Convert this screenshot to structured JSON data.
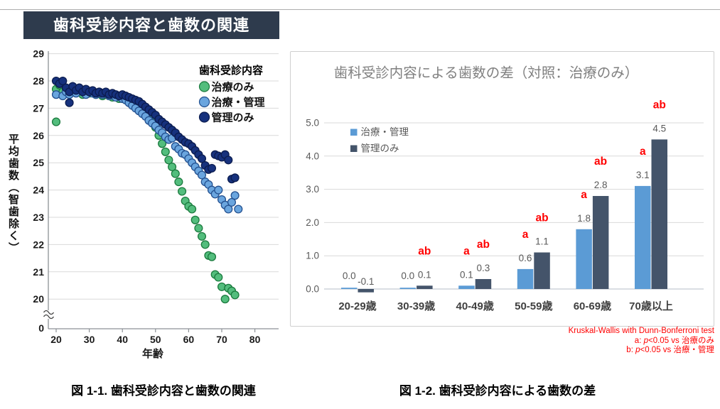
{
  "colors": {
    "banner_bg": "#2E3B4D",
    "banner_text": "#FFFFFF",
    "topline": "#ADADAD",
    "panel_border": "#CFCFCF",
    "grid": "#D9D9D9",
    "axis": "#8C9196",
    "bar_baseline": "#C3C9D2",
    "tick_label": "#595959",
    "scatter_tick_label": "#1A1A1A",
    "category_label": "#404040",
    "chart_title": "#7F7F7F",
    "legend_text": "#111111",
    "sig_red": "#FF0000"
  },
  "chart_data": [
    {
      "id": "fig-1-1",
      "type": "scatter",
      "title": "歯科受診内容と歯数の関連",
      "caption": "図 1-1. 歯科受診内容と歯数の関連",
      "xlabel": "年齢",
      "ylabel": "平均歯数（智歯除く）",
      "legend_title": "歯科受診内容",
      "legend_position": "top-right",
      "grid": true,
      "x_ticks": [
        20,
        30,
        40,
        50,
        60,
        70,
        80
      ],
      "y_ticks": [
        20,
        21,
        22,
        23,
        24,
        25,
        26,
        27,
        28,
        29
      ],
      "y_axis_break": true,
      "y_axis_origin_label": "0",
      "xlim": [
        17,
        87
      ],
      "ylim_main": [
        20,
        29
      ],
      "series": [
        {
          "name": "治療のみ",
          "color": "#53BD7D",
          "edge": "#1B7A3E",
          "start_age": 20,
          "values": [
            27.7,
            27.85,
            27.6,
            27.7,
            27.55,
            27.75,
            27.6,
            27.65,
            27.5,
            27.6,
            27.55,
            27.6,
            27.5,
            27.55,
            27.45,
            27.5,
            27.45,
            27.4,
            27.45,
            27.35,
            27.35,
            27.3,
            27.25,
            27.15,
            27.05,
            27.0,
            26.9,
            26.8,
            26.65,
            26.5,
            26.3,
            26.0,
            25.7,
            25.4,
            25.1,
            24.85,
            24.6,
            24.3,
            23.95,
            23.6,
            23.4,
            23.3,
            22.9,
            22.6,
            22.3,
            22.0,
            21.6,
            21.55,
            20.9,
            20.8,
            20.45,
            20.0,
            20.4,
            20.3,
            20.15
          ],
          "extra_points": [
            [
              20,
              26.5
            ]
          ]
        },
        {
          "name": "治療・管理",
          "color": "#6AA5DE",
          "edge": "#23508F",
          "start_age": 20,
          "values": [
            27.5,
            27.9,
            27.45,
            27.6,
            27.5,
            27.8,
            27.55,
            27.7,
            27.6,
            27.5,
            27.6,
            27.55,
            27.5,
            27.6,
            27.5,
            27.55,
            27.45,
            27.5,
            27.4,
            27.45,
            27.35,
            27.3,
            27.2,
            27.1,
            27.0,
            26.9,
            26.8,
            26.7,
            26.55,
            26.45,
            26.35,
            26.2,
            26.1,
            25.95,
            25.85,
            25.9,
            25.6,
            25.5,
            25.35,
            25.3,
            25.15,
            25.0,
            24.85,
            24.7,
            24.55,
            24.3,
            24.2,
            24.0,
            23.85,
            24.0,
            23.65,
            23.45,
            23.3,
            23.55,
            23.8,
            23.3
          ],
          "extra_points": []
        },
        {
          "name": "管理のみ",
          "color": "#16317D",
          "edge": "#0B1C4F",
          "start_age": 20,
          "values": [
            28.0,
            27.9,
            28.0,
            27.75,
            27.6,
            27.8,
            27.65,
            27.75,
            27.6,
            27.7,
            27.6,
            27.65,
            27.55,
            27.6,
            27.55,
            27.6,
            27.5,
            27.55,
            27.5,
            27.45,
            27.5,
            27.45,
            27.4,
            27.35,
            27.3,
            27.25,
            27.15,
            27.05,
            26.95,
            26.85,
            26.75,
            26.6,
            26.5,
            26.4,
            26.3,
            26.2,
            26.1,
            25.95,
            25.85,
            25.75,
            25.7,
            25.6,
            25.45,
            25.3,
            25.15,
            24.9,
            24.75,
            24.8,
            25.3,
            25.25,
            25.2,
            25.3,
            25.1,
            24.4,
            24.45
          ],
          "extra_points": [
            [
              24,
              27.2
            ]
          ]
        }
      ]
    },
    {
      "id": "fig-1-2",
      "type": "bar",
      "title": "歯科受診内容による歯数の差（対照：治療のみ）",
      "caption": "図 1-2. 歯科受診内容による歯数の差",
      "categories": [
        "20-29歳",
        "30-39歳",
        "40-49歳",
        "50-59歳",
        "60-69歳",
        "70歳以上"
      ],
      "series": [
        {
          "name": "治療・管理",
          "color": "#5B9BD5",
          "values": [
            0.0,
            0.0,
            0.1,
            0.6,
            1.8,
            3.1
          ],
          "sig": [
            "",
            "",
            "a",
            "a",
            "a",
            "a"
          ]
        },
        {
          "name": "管理のみ",
          "color": "#44546A",
          "values": [
            -0.1,
            0.1,
            0.3,
            1.1,
            2.8,
            4.5
          ],
          "sig": [
            "",
            "ab",
            "ab",
            "ab",
            "ab",
            "ab"
          ]
        }
      ],
      "ylim": [
        0.0,
        5.0
      ],
      "y_ticks": [
        0.0,
        1.0,
        2.0,
        3.0,
        4.0,
        5.0
      ],
      "grid": true,
      "legend_position": "top-left",
      "sig_color": "#FF0000"
    }
  ],
  "footnote": {
    "line1": "Kruskal-Wallis with Dunn-Bonferroni test",
    "a_prefix": "a: ",
    "p_symbol": "p",
    "a_rest": "<0.05 vs 治療のみ",
    "b_prefix": "b: ",
    "b_rest": "<0.05 vs 治療・管理"
  }
}
